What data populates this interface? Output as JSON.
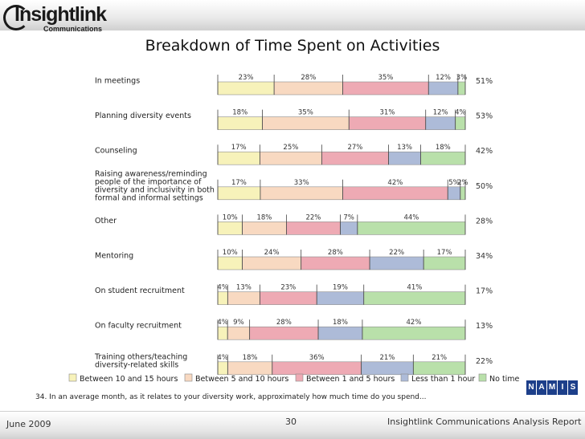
{
  "logo": {
    "word": "Insightlink",
    "sub": "Communications"
  },
  "nami_logo": {
    "letters": [
      "N",
      "A",
      "M",
      "I",
      "S"
    ]
  },
  "footer": {
    "date": "June 2009",
    "page": "30",
    "report": "Insightlink Communications Analysis Report"
  },
  "question": "34. In an average month, as it relates to your diversity work, approximately how much time do you spend...",
  "chart_data": {
    "type": "bar",
    "orientation": "horizontal-stacked-100",
    "title": "Breakdown of Time Spent on Activities",
    "legend_position": "bottom",
    "grid": false,
    "series": [
      {
        "name": "Between 10 and 15 hours",
        "color": "#f7f2ba"
      },
      {
        "name": "Between 5 and 10 hours",
        "color": "#f8d9c1"
      },
      {
        "name": "Between 1 and 5 hours",
        "color": "#eeaab4"
      },
      {
        "name": "Less than 1 hour",
        "color": "#adbbd8"
      },
      {
        "name": "No time",
        "color": "#b9e0aa"
      }
    ],
    "categories": [
      {
        "label": [
          "In meetings"
        ],
        "values": [
          23,
          28,
          35,
          12,
          3
        ],
        "labels": [
          "23%",
          "28%",
          "35%",
          "12%",
          "3%"
        ],
        "no_time_total": "51%"
      },
      {
        "label": [
          "Planning diversity events"
        ],
        "values": [
          18,
          35,
          31,
          12,
          4
        ],
        "labels": [
          "18%",
          "35%",
          "31%",
          "12%",
          "4%"
        ],
        "no_time_total": "53%"
      },
      {
        "label": [
          "Counseling"
        ],
        "values": [
          17,
          25,
          27,
          13,
          18
        ],
        "labels": [
          "17%",
          "25%",
          "27%",
          "13%",
          "18%"
        ],
        "no_time_total": "42%"
      },
      {
        "label": [
          "Raising awareness/reminding",
          "people of the importance of",
          "diversity and inclusivity in both",
          "formal and informal settings"
        ],
        "values": [
          17,
          33,
          42,
          5,
          2
        ],
        "labels": [
          "17%",
          "33%",
          "42%",
          "5%",
          "2%"
        ],
        "no_time_total": "50%"
      },
      {
        "label": [
          "Other"
        ],
        "values": [
          10,
          18,
          22,
          7,
          44
        ],
        "labels": [
          "10%",
          "18%",
          "22%",
          "7%",
          "44%"
        ],
        "no_time_total": "28%"
      },
      {
        "label": [
          "Mentoring"
        ],
        "values": [
          10,
          24,
          28,
          22,
          17
        ],
        "labels": [
          "10%",
          "24%",
          "28%",
          "22%",
          "17%"
        ],
        "no_time_total": "34%"
      },
      {
        "label": [
          "On student recruitment"
        ],
        "values": [
          4,
          13,
          23,
          19,
          41
        ],
        "labels": [
          "4%",
          "13%",
          "23%",
          "19%",
          "41%"
        ],
        "no_time_total": "17%"
      },
      {
        "label": [
          "On faculty recruitment"
        ],
        "values": [
          4,
          9,
          28,
          18,
          42
        ],
        "labels": [
          "4%",
          "9%",
          "28%",
          "18%",
          "42%"
        ],
        "no_time_total": "13%"
      },
      {
        "label": [
          "Training others/teaching",
          "diversity-related skills"
        ],
        "values": [
          4,
          18,
          36,
          21,
          21
        ],
        "labels": [
          "4%",
          "18%",
          "36%",
          "21%",
          "21%"
        ],
        "no_time_total": "22%"
      }
    ]
  }
}
